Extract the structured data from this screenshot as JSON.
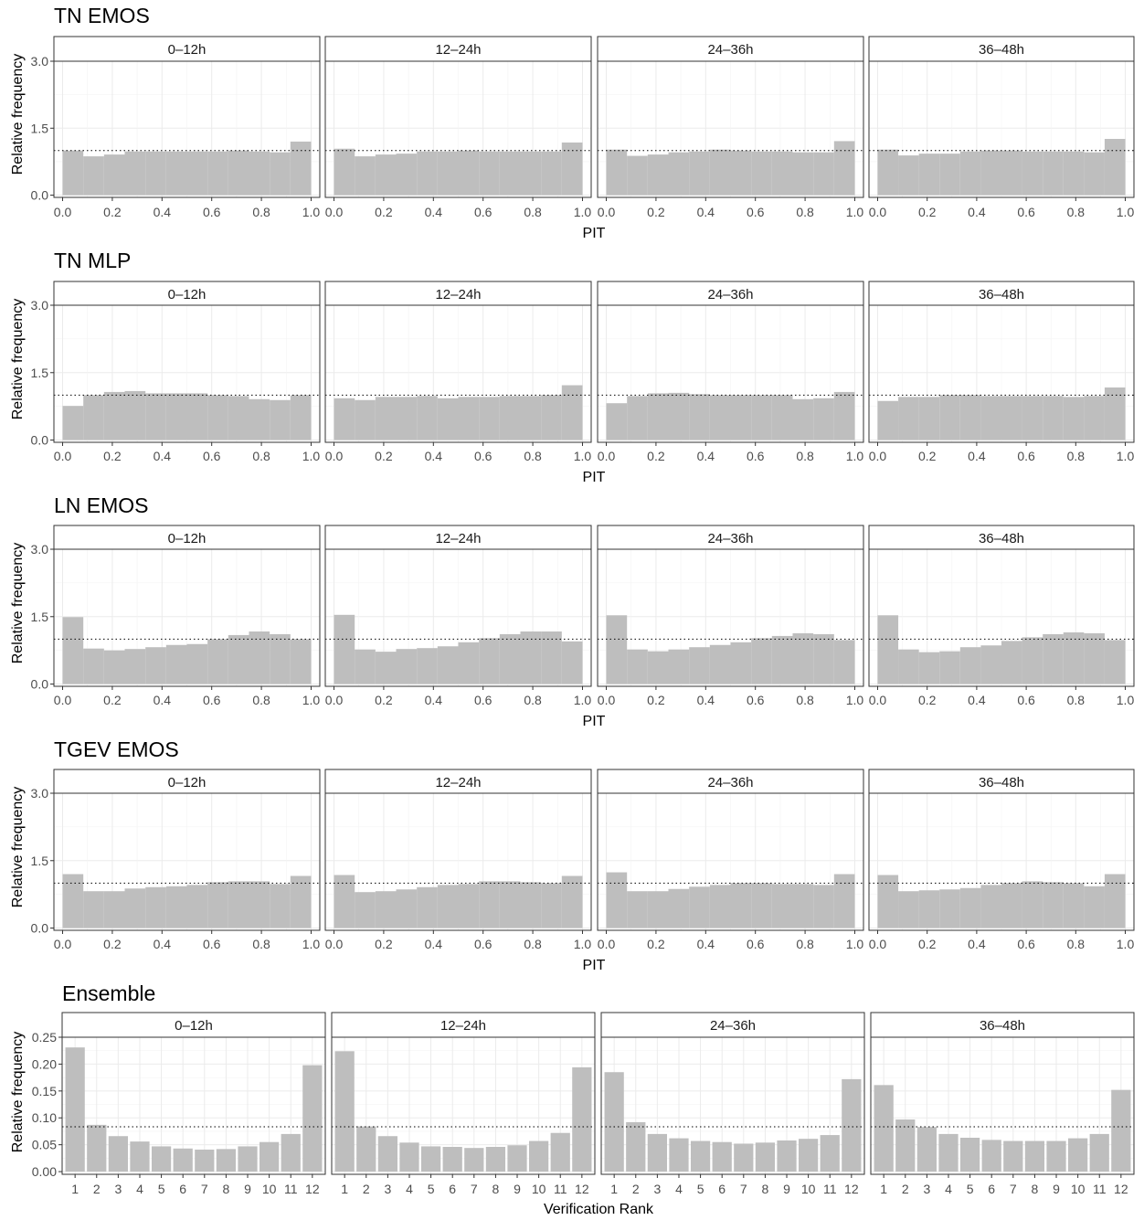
{
  "colors": {
    "bar": "#bebebe",
    "grid": "#ebebeb",
    "border": "#333333",
    "ref_line": "#000000"
  },
  "chart_data": [
    {
      "type": "bar",
      "title": "TN EMOS",
      "xlabel": "PIT",
      "ylabel": "Relative frequency",
      "ylim": [
        -0.05,
        3.0
      ],
      "yticks": [
        "0.0",
        "1.5",
        "3.0"
      ],
      "xticks": [
        "0.0",
        "0.2",
        "0.4",
        "0.6",
        "0.8",
        "1.0"
      ],
      "xlim": [
        0,
        1
      ],
      "bins": 12,
      "reference": 1.0,
      "panels": [
        {
          "label": "0–12h",
          "values": [
            1.0,
            0.87,
            0.91,
            0.98,
            0.98,
            0.98,
            0.98,
            0.98,
            1.0,
            0.98,
            0.96,
            1.2
          ]
        },
        {
          "label": "12–24h",
          "values": [
            1.04,
            0.87,
            0.91,
            0.93,
            0.98,
            0.98,
            1.0,
            0.98,
            0.98,
            0.98,
            0.98,
            1.18
          ]
        },
        {
          "label": "24–36h",
          "values": [
            1.02,
            0.88,
            0.91,
            0.96,
            0.98,
            1.02,
            1.0,
            0.98,
            0.98,
            0.96,
            0.96,
            1.21
          ]
        },
        {
          "label": "36–48h",
          "values": [
            1.02,
            0.89,
            0.93,
            0.93,
            0.98,
            1.0,
            1.0,
            0.98,
            0.98,
            0.98,
            0.96,
            1.26
          ]
        }
      ]
    },
    {
      "type": "bar",
      "title": "TN MLP",
      "xlabel": "PIT",
      "ylabel": "Relative frequency",
      "ylim": [
        -0.05,
        3.0
      ],
      "yticks": [
        "0.0",
        "1.5",
        "3.0"
      ],
      "xticks": [
        "0.0",
        "0.2",
        "0.4",
        "0.6",
        "0.8",
        "1.0"
      ],
      "xlim": [
        0,
        1
      ],
      "bins": 12,
      "reference": 1.0,
      "panels": [
        {
          "label": "0–12h",
          "values": [
            0.76,
            1.0,
            1.07,
            1.09,
            1.04,
            1.04,
            1.04,
            1.0,
            0.98,
            0.91,
            0.89,
            1.0
          ]
        },
        {
          "label": "12–24h",
          "values": [
            0.93,
            0.89,
            0.96,
            0.96,
            0.98,
            0.93,
            0.96,
            0.96,
            0.98,
            0.98,
            1.0,
            1.22
          ]
        },
        {
          "label": "24–36h",
          "values": [
            0.82,
            0.98,
            1.04,
            1.05,
            1.02,
            1.0,
            1.0,
            1.0,
            1.0,
            0.91,
            0.93,
            1.07
          ]
        },
        {
          "label": "36–48h",
          "values": [
            0.87,
            0.96,
            0.96,
            1.0,
            1.0,
            0.98,
            0.98,
            0.98,
            0.98,
            0.96,
            0.98,
            1.17
          ]
        }
      ]
    },
    {
      "type": "bar",
      "title": "LN EMOS",
      "xlabel": "PIT",
      "ylabel": "Relative frequency",
      "ylim": [
        -0.05,
        3.0
      ],
      "yticks": [
        "0.0",
        "1.5",
        "3.0"
      ],
      "xticks": [
        "0.0",
        "0.2",
        "0.4",
        "0.6",
        "0.8",
        "1.0"
      ],
      "xlim": [
        0,
        1
      ],
      "bins": 12,
      "reference": 1.0,
      "panels": [
        {
          "label": "0–12h",
          "values": [
            1.49,
            0.79,
            0.75,
            0.78,
            0.82,
            0.87,
            0.89,
            1.0,
            1.09,
            1.17,
            1.11,
            1.0
          ]
        },
        {
          "label": "12–24h",
          "values": [
            1.54,
            0.77,
            0.72,
            0.78,
            0.8,
            0.84,
            0.93,
            1.02,
            1.11,
            1.17,
            1.17,
            0.95
          ]
        },
        {
          "label": "24–36h",
          "values": [
            1.53,
            0.77,
            0.73,
            0.77,
            0.82,
            0.87,
            0.93,
            1.02,
            1.07,
            1.13,
            1.11,
            0.98
          ]
        },
        {
          "label": "36–48h",
          "values": [
            1.53,
            0.77,
            0.71,
            0.73,
            0.82,
            0.86,
            0.96,
            1.04,
            1.11,
            1.15,
            1.13,
            0.98
          ]
        }
      ]
    },
    {
      "type": "bar",
      "title": "TGEV EMOS",
      "xlabel": "PIT",
      "ylabel": "Relative frequency",
      "ylim": [
        -0.05,
        3.0
      ],
      "yticks": [
        "0.0",
        "1.5",
        "3.0"
      ],
      "xticks": [
        "0.0",
        "0.2",
        "0.4",
        "0.6",
        "0.8",
        "1.0"
      ],
      "xlim": [
        0,
        1
      ],
      "bins": 12,
      "reference": 1.0,
      "panels": [
        {
          "label": "0–12h",
          "values": [
            1.2,
            0.82,
            0.82,
            0.88,
            0.91,
            0.93,
            0.96,
            1.02,
            1.04,
            1.04,
            0.98,
            1.16
          ]
        },
        {
          "label": "12–24h",
          "values": [
            1.18,
            0.8,
            0.82,
            0.86,
            0.91,
            0.96,
            0.98,
            1.04,
            1.04,
            1.02,
            1.0,
            1.16
          ]
        },
        {
          "label": "24–36h",
          "values": [
            1.24,
            0.82,
            0.82,
            0.87,
            0.92,
            0.96,
            1.0,
            1.0,
            0.98,
            0.98,
            0.96,
            1.2
          ]
        },
        {
          "label": "36–48h",
          "values": [
            1.18,
            0.82,
            0.84,
            0.86,
            0.89,
            0.96,
            1.0,
            1.04,
            1.02,
            1.0,
            0.93,
            1.2
          ]
        }
      ]
    },
    {
      "type": "bar",
      "title": "Ensemble",
      "xlabel": "Verification Rank",
      "ylabel": "Relative frequency",
      "ylim": [
        -0.005,
        0.25
      ],
      "yticks": [
        "0.00",
        "0.05",
        "0.10",
        "0.15",
        "0.20",
        "0.25"
      ],
      "categories": [
        "1",
        "2",
        "3",
        "4",
        "5",
        "6",
        "7",
        "8",
        "9",
        "10",
        "11",
        "12"
      ],
      "reference": 0.0833,
      "panels": [
        {
          "label": "0–12h",
          "values": [
            0.231,
            0.087,
            0.066,
            0.056,
            0.047,
            0.043,
            0.041,
            0.042,
            0.047,
            0.055,
            0.07,
            0.198
          ]
        },
        {
          "label": "12–24h",
          "values": [
            0.224,
            0.084,
            0.066,
            0.054,
            0.047,
            0.046,
            0.044,
            0.046,
            0.049,
            0.057,
            0.072,
            0.194
          ]
        },
        {
          "label": "24–36h",
          "values": [
            0.185,
            0.092,
            0.07,
            0.062,
            0.057,
            0.055,
            0.052,
            0.054,
            0.058,
            0.061,
            0.068,
            0.172
          ]
        },
        {
          "label": "36–48h",
          "values": [
            0.161,
            0.097,
            0.083,
            0.07,
            0.063,
            0.059,
            0.057,
            0.057,
            0.057,
            0.062,
            0.07,
            0.152
          ]
        }
      ]
    }
  ]
}
